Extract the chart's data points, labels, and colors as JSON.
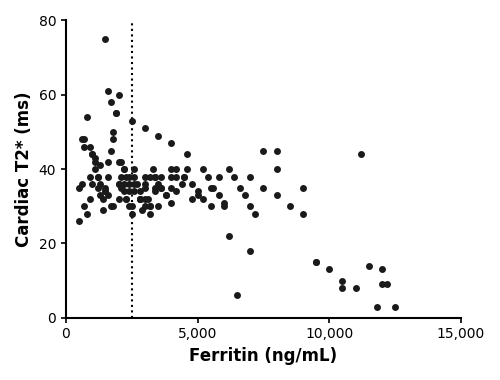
{
  "x": [
    500,
    700,
    800,
    900,
    1000,
    1100,
    1200,
    1300,
    1400,
    1500,
    1600,
    1700,
    1800,
    1900,
    2000,
    500,
    600,
    700,
    800,
    900,
    1000,
    1100,
    1200,
    1300,
    1500,
    1600,
    1700,
    1800,
    1900,
    2000,
    2100,
    2200,
    2300,
    2400,
    2500,
    2600,
    2700,
    2800,
    2900,
    3000,
    3100,
    3200,
    3300,
    3400,
    3500,
    2100,
    2200,
    2300,
    2400,
    2600,
    2800,
    3000,
    3200,
    3400,
    3600,
    3800,
    4000,
    4200,
    4400,
    4600,
    2000,
    2200,
    2400,
    2600,
    2800,
    3000,
    3200,
    3400,
    3600,
    3800,
    4000,
    4200,
    4500,
    4800,
    5000,
    5200,
    5400,
    5600,
    5800,
    6000,
    6200,
    6400,
    6600,
    6800,
    7000,
    7200,
    7500,
    8000,
    8500,
    9000,
    9500,
    10000,
    10500,
    11000,
    11500,
    12000,
    12500,
    1500,
    1600,
    1700,
    2500,
    3000,
    3500,
    4000,
    1200,
    1400,
    900,
    1100,
    2100,
    2300,
    700,
    1000,
    1300,
    1600,
    2000,
    2400,
    2800,
    3200,
    3600,
    4000,
    4500,
    5000,
    5500,
    6000,
    7000,
    8000,
    9000,
    600,
    1800,
    2200,
    2600,
    3000,
    3400,
    4000,
    4600,
    5200,
    5800,
    6500,
    7500,
    11200,
    11800,
    12200,
    1500,
    2000,
    2500,
    3000,
    3500,
    4200,
    4800,
    5500,
    6200,
    7000,
    8000,
    9500,
    10500,
    12000
  ],
  "y": [
    35,
    30,
    28,
    32,
    36,
    40,
    38,
    33,
    29,
    34,
    42,
    45,
    50,
    55,
    36,
    26,
    36,
    48,
    54,
    46,
    44,
    42,
    38,
    36,
    35,
    33,
    30,
    48,
    55,
    60,
    38,
    34,
    32,
    30,
    28,
    40,
    36,
    32,
    29,
    35,
    32,
    38,
    40,
    35,
    30,
    42,
    40,
    38,
    36,
    34,
    32,
    30,
    28,
    38,
    35,
    33,
    40,
    38,
    36,
    44,
    42,
    40,
    38,
    36,
    34,
    32,
    30,
    38,
    35,
    33,
    31,
    40,
    38,
    36,
    34,
    32,
    38,
    35,
    33,
    31,
    40,
    38,
    35,
    33,
    30,
    28,
    35,
    33,
    30,
    28,
    15,
    13,
    10,
    8,
    14,
    9,
    3,
    75,
    61,
    58,
    53,
    51,
    49,
    47,
    35,
    32,
    38,
    43,
    35,
    32,
    46,
    44,
    41,
    38,
    36,
    34,
    32,
    30,
    38,
    35,
    38,
    33,
    35,
    30,
    38,
    40,
    35,
    48,
    30,
    36,
    38,
    36,
    34,
    38,
    40,
    40,
    38,
    6,
    45,
    44,
    3,
    9,
    34,
    32,
    30,
    38,
    36,
    34,
    32,
    30,
    22,
    18,
    45,
    15,
    8,
    13
  ],
  "vline_x": 2500,
  "xlim": [
    0,
    15000
  ],
  "ylim": [
    0,
    80
  ],
  "xticks": [
    0,
    5000,
    10000,
    15000
  ],
  "yticks": [
    0,
    20,
    40,
    60,
    80
  ],
  "xlabel": "Ferritin (ng/mL)",
  "ylabel": "Cardiac T2* (ms)",
  "marker_color": "#1a1a1a",
  "marker_size": 5,
  "bg_color": "#ffffff",
  "dot_style": "o",
  "linewidth_axes": 1.5
}
